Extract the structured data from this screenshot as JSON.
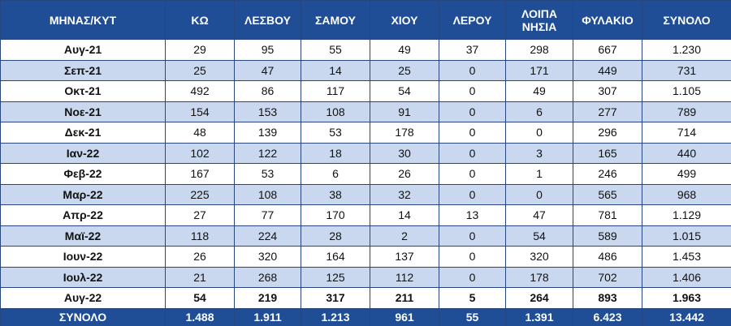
{
  "table": {
    "header": [
      "ΜΗΝΑΣ/ΚΥΤ",
      "ΚΩ",
      "ΛΕΣΒΟΥ",
      "ΣΑΜΟΥ",
      "ΧΙΟΥ",
      "ΛΕΡΟΥ",
      "ΛΟΙΠΑ ΝΗΣΙΑ",
      "ΦΥΛΑΚΙΟ",
      "ΣΥΝΟΛΟ"
    ],
    "rows": [
      [
        "Αυγ-21",
        "29",
        "95",
        "55",
        "49",
        "37",
        "298",
        "667",
        "1.230"
      ],
      [
        "Σεπ-21",
        "25",
        "47",
        "14",
        "25",
        "0",
        "171",
        "449",
        "731"
      ],
      [
        "Οκτ-21",
        "492",
        "86",
        "117",
        "54",
        "0",
        "49",
        "307",
        "1.105"
      ],
      [
        "Νοε-21",
        "154",
        "153",
        "108",
        "91",
        "0",
        "6",
        "277",
        "789"
      ],
      [
        "Δεκ-21",
        "48",
        "139",
        "53",
        "178",
        "0",
        "0",
        "296",
        "714"
      ],
      [
        "Ιαν-22",
        "102",
        "122",
        "18",
        "30",
        "0",
        "3",
        "165",
        "440"
      ],
      [
        "Φεβ-22",
        "167",
        "53",
        "6",
        "26",
        "0",
        "1",
        "246",
        "499"
      ],
      [
        "Μαρ-22",
        "225",
        "108",
        "38",
        "32",
        "0",
        "0",
        "565",
        "968"
      ],
      [
        "Απρ-22",
        "27",
        "77",
        "170",
        "14",
        "13",
        "47",
        "781",
        "1.129"
      ],
      [
        "Μαϊ-22",
        "118",
        "224",
        "28",
        "2",
        "0",
        "54",
        "589",
        "1.015"
      ],
      [
        "Ιουν-22",
        "26",
        "320",
        "164",
        "137",
        "0",
        "320",
        "486",
        "1.453"
      ],
      [
        "Ιουλ-22",
        "21",
        "268",
        "125",
        "112",
        "0",
        "178",
        "702",
        "1.406"
      ],
      [
        "Αυγ-22",
        "54",
        "219",
        "317",
        "211",
        "5",
        "264",
        "893",
        "1.963"
      ]
    ],
    "total": [
      "ΣΥΝΟΛΟ",
      "1.488",
      "1.911",
      "1.213",
      "961",
      "55",
      "1.391",
      "6.423",
      "13.442"
    ]
  }
}
